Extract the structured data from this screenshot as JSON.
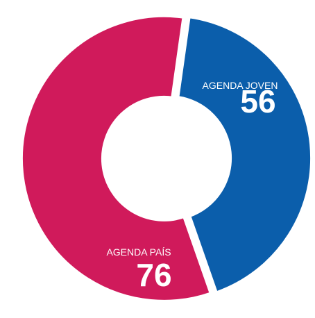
{
  "chart_data": {
    "type": "donut",
    "categories": [
      "AGENDA JOVEN",
      "AGENDA PAÍS"
    ],
    "values": [
      56,
      76
    ],
    "colors": [
      "#0b5eab",
      "#d01a5b"
    ]
  }
}
